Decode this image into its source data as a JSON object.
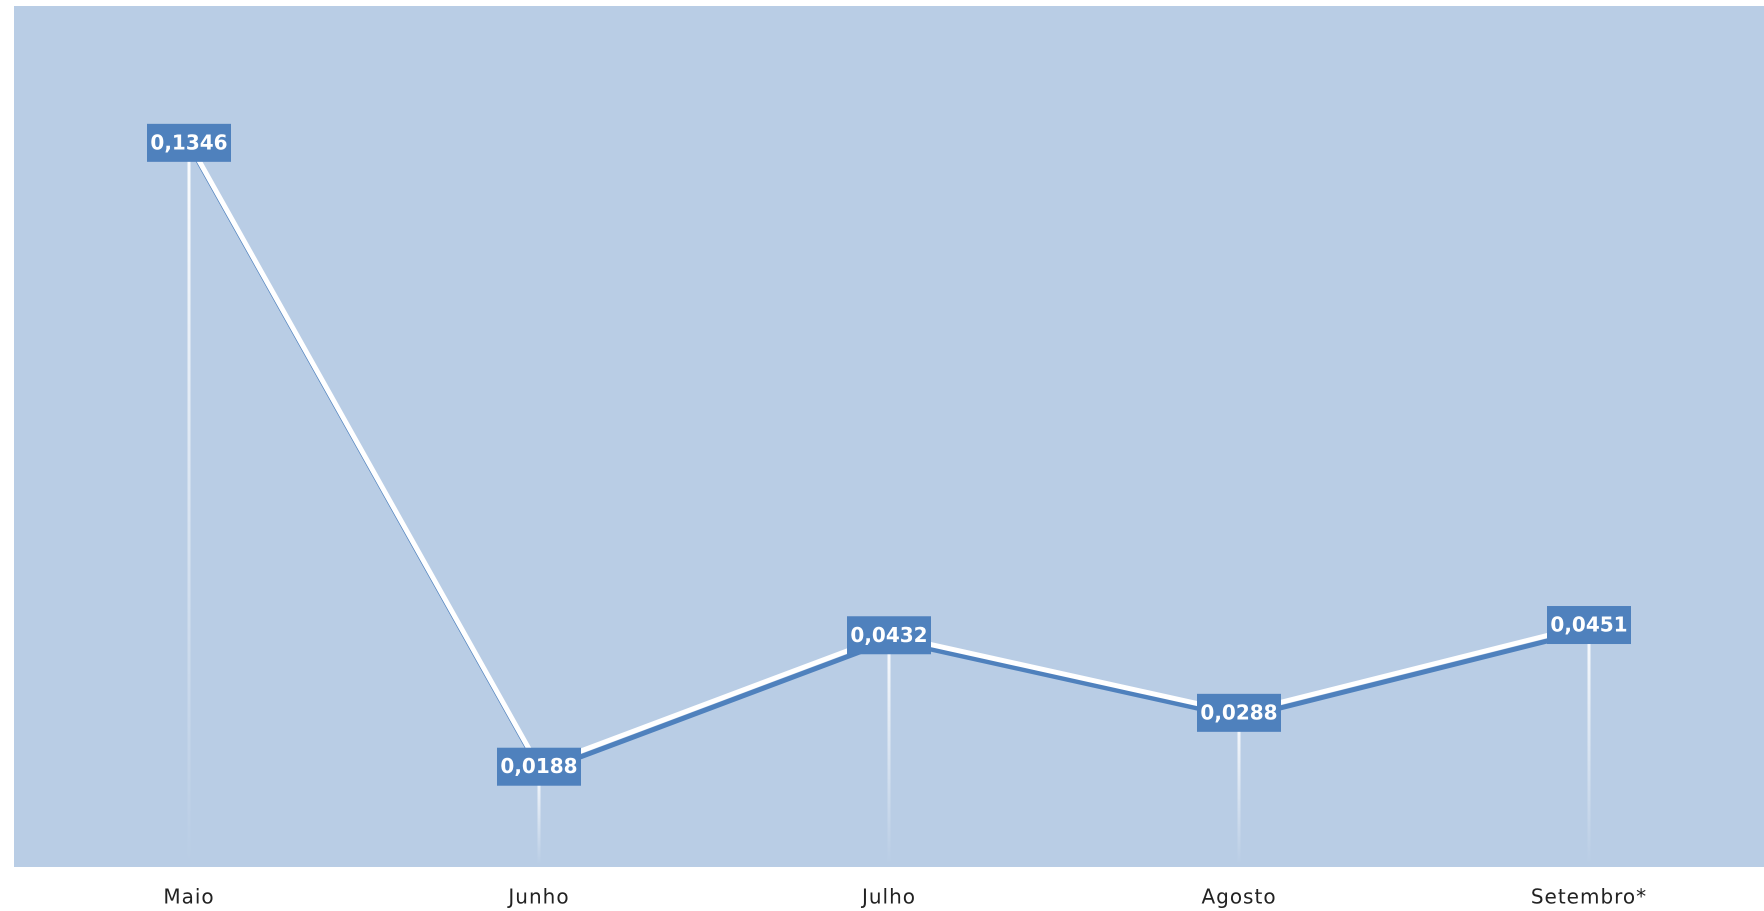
{
  "chart_data": {
    "type": "line",
    "categories": [
      "Maio",
      "Junho",
      "Julho",
      "Agosto",
      "Setembro*"
    ],
    "values": [
      0.1346,
      0.0188,
      0.0432,
      0.0288,
      0.0451
    ],
    "value_labels": [
      "0,1346",
      "0,0188",
      "0,0432",
      "0,0288",
      "0,0451"
    ],
    "color": "#4f81bd",
    "ylim": [
      0,
      0.16
    ]
  }
}
